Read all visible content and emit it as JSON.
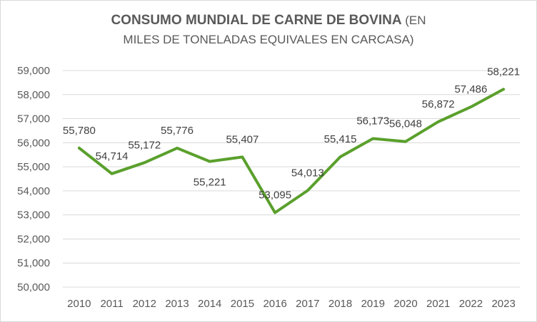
{
  "chart_data": {
    "type": "line",
    "title_main": "CONSUMO MUNDIAL DE CARNE DE BOVINA",
    "title_rest": " (EN",
    "title_line2": "MILES DE TONELADAS EQUIVALES EN CARCASA)",
    "categories": [
      "2010",
      "2011",
      "2012",
      "2013",
      "2014",
      "2015",
      "2016",
      "2017",
      "2018",
      "2019",
      "2020",
      "2021",
      "2022",
      "2023"
    ],
    "series": [
      {
        "values": [
          55780,
          54714,
          55172,
          55776,
          55221,
          55407,
          53095,
          54013,
          55415,
          56173,
          56048,
          56872,
          57486,
          58221
        ],
        "labels": [
          "55,780",
          "54,714",
          "55,172",
          "55,776",
          "55,221",
          "55,407",
          "53,095",
          "54,013",
          "55,415",
          "56,173",
          "56,048",
          "56,872",
          "57,486",
          "58,221"
        ],
        "color": "#5aa02c"
      }
    ],
    "yticks": [
      "50,000",
      "51,000",
      "52,000",
      "53,000",
      "54,000",
      "55,000",
      "56,000",
      "57,000",
      "58,000",
      "59,000"
    ],
    "ylim": [
      50000,
      59000
    ],
    "grid": true,
    "grid_color": "#d9d9d9",
    "legend": "none"
  }
}
